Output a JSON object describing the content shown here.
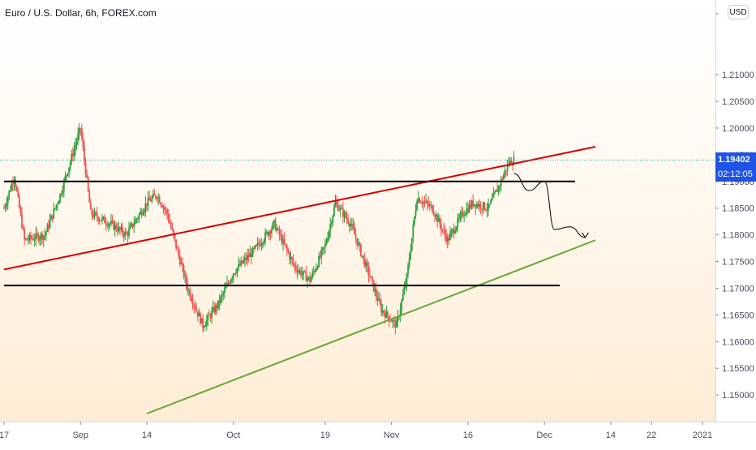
{
  "header": {
    "title": "Euro / U.S. Dollar, 6h, FOREX.com",
    "currency_button": "USD"
  },
  "price_labels": {
    "last_price": "1.19402",
    "countdown": "02:12:05"
  },
  "colors": {
    "up": "#26a69a",
    "up_body": "#2e9e3c",
    "down": "#ef5350",
    "resistance_channel": "#d50000",
    "support_channel": "#6aaa3a",
    "horizontal_levels": "#000000",
    "price_tag": "#1e53e5"
  },
  "chart_data": {
    "type": "candlestick",
    "ylim": [
      1.145,
      1.224
    ],
    "y_ticks": [
      {
        "value": 1.21,
        "label": "1.21000"
      },
      {
        "value": 1.205,
        "label": "1.20500"
      },
      {
        "value": 1.2,
        "label": "1.20000"
      },
      {
        "value": 1.195,
        "label": "1.19500"
      },
      {
        "value": 1.19,
        "label": "1.19000"
      },
      {
        "value": 1.185,
        "label": "1.18500"
      },
      {
        "value": 1.18,
        "label": "1.18000"
      },
      {
        "value": 1.175,
        "label": "1.17500"
      },
      {
        "value": 1.17,
        "label": "1.17000"
      },
      {
        "value": 1.165,
        "label": "1.16500"
      },
      {
        "value": 1.16,
        "label": "1.16000"
      },
      {
        "value": 1.155,
        "label": "1.15500"
      },
      {
        "value": 1.15,
        "label": "1.15000"
      }
    ],
    "x_ticks": [
      {
        "date": "2020-08-17",
        "label": "17"
      },
      {
        "date": "2020-09-01",
        "label": "Sep"
      },
      {
        "date": "2020-09-14",
        "label": "14"
      },
      {
        "date": "2020-10-01",
        "label": "Oct"
      },
      {
        "date": "2020-10-19",
        "label": "19"
      },
      {
        "date": "2020-11-01",
        "label": "Nov"
      },
      {
        "date": "2020-11-16",
        "label": "16"
      },
      {
        "date": "2020-12-01",
        "label": "Dec"
      },
      {
        "date": "2020-12-14",
        "label": "14"
      },
      {
        "date": "2020-12-22",
        "label": "22"
      },
      {
        "date": "2021-01-01",
        "label": "2021"
      }
    ],
    "price_path": [
      {
        "date": "2020-08-17",
        "value": 1.185
      },
      {
        "date": "2020-08-19",
        "value": 1.191
      },
      {
        "date": "2020-08-21",
        "value": 1.179
      },
      {
        "date": "2020-08-25",
        "value": 1.18
      },
      {
        "date": "2020-08-28",
        "value": 1.1875
      },
      {
        "date": "2020-09-01",
        "value": 1.2
      },
      {
        "date": "2020-09-03",
        "value": 1.184
      },
      {
        "date": "2020-09-07",
        "value": 1.182
      },
      {
        "date": "2020-09-10",
        "value": 1.18
      },
      {
        "date": "2020-09-14",
        "value": 1.186
      },
      {
        "date": "2020-09-16",
        "value": 1.1875
      },
      {
        "date": "2020-09-18",
        "value": 1.184
      },
      {
        "date": "2020-09-22",
        "value": 1.17
      },
      {
        "date": "2020-09-25",
        "value": 1.163
      },
      {
        "date": "2020-09-28",
        "value": 1.167
      },
      {
        "date": "2020-10-01",
        "value": 1.173
      },
      {
        "date": "2020-10-05",
        "value": 1.177
      },
      {
        "date": "2020-10-09",
        "value": 1.182
      },
      {
        "date": "2020-10-13",
        "value": 1.174
      },
      {
        "date": "2020-10-16",
        "value": 1.1715
      },
      {
        "date": "2020-10-19",
        "value": 1.178
      },
      {
        "date": "2020-10-21",
        "value": 1.186
      },
      {
        "date": "2020-10-24",
        "value": 1.182
      },
      {
        "date": "2020-10-28",
        "value": 1.1715
      },
      {
        "date": "2020-10-30",
        "value": 1.166
      },
      {
        "date": "2020-11-02",
        "value": 1.163
      },
      {
        "date": "2020-11-04",
        "value": 1.172
      },
      {
        "date": "2020-11-06",
        "value": 1.187
      },
      {
        "date": "2020-11-09",
        "value": 1.185
      },
      {
        "date": "2020-11-12",
        "value": 1.179
      },
      {
        "date": "2020-11-15",
        "value": 1.184
      },
      {
        "date": "2020-11-17",
        "value": 1.186
      },
      {
        "date": "2020-11-20",
        "value": 1.185
      },
      {
        "date": "2020-11-22",
        "value": 1.189
      },
      {
        "date": "2020-11-24",
        "value": 1.1935
      },
      {
        "date": "2020-11-25",
        "value": 1.194
      }
    ],
    "last_price": 1.19402,
    "drawings": [
      {
        "name": "resistance-trendline",
        "color": "#d50000",
        "points": [
          {
            "date": "2020-08-17",
            "value": 1.1735
          },
          {
            "date": "2020-12-11",
            "value": 1.1965
          }
        ]
      },
      {
        "name": "support-trendline",
        "color": "#6aaa3a",
        "points": [
          {
            "date": "2020-09-14",
            "value": 1.1465
          },
          {
            "date": "2020-12-11",
            "value": 1.179
          }
        ]
      },
      {
        "name": "upper-horizontal-level",
        "color": "#000000",
        "points": [
          {
            "date": "2020-08-17",
            "value": 1.19
          },
          {
            "date": "2020-12-07",
            "value": 1.19
          }
        ]
      },
      {
        "name": "lower-horizontal-level",
        "color": "#000000",
        "points": [
          {
            "date": "2020-08-17",
            "value": 1.1705
          },
          {
            "date": "2020-12-04",
            "value": 1.1705
          }
        ]
      }
    ],
    "projection_path": [
      {
        "date": "2020-11-25",
        "value": 1.1915
      },
      {
        "date": "2020-11-28",
        "value": 1.1883
      },
      {
        "date": "2020-12-01",
        "value": 1.19
      },
      {
        "date": "2020-12-03",
        "value": 1.181
      },
      {
        "date": "2020-12-06",
        "value": 1.1815
      },
      {
        "date": "2020-12-09",
        "value": 1.1795
      }
    ]
  }
}
